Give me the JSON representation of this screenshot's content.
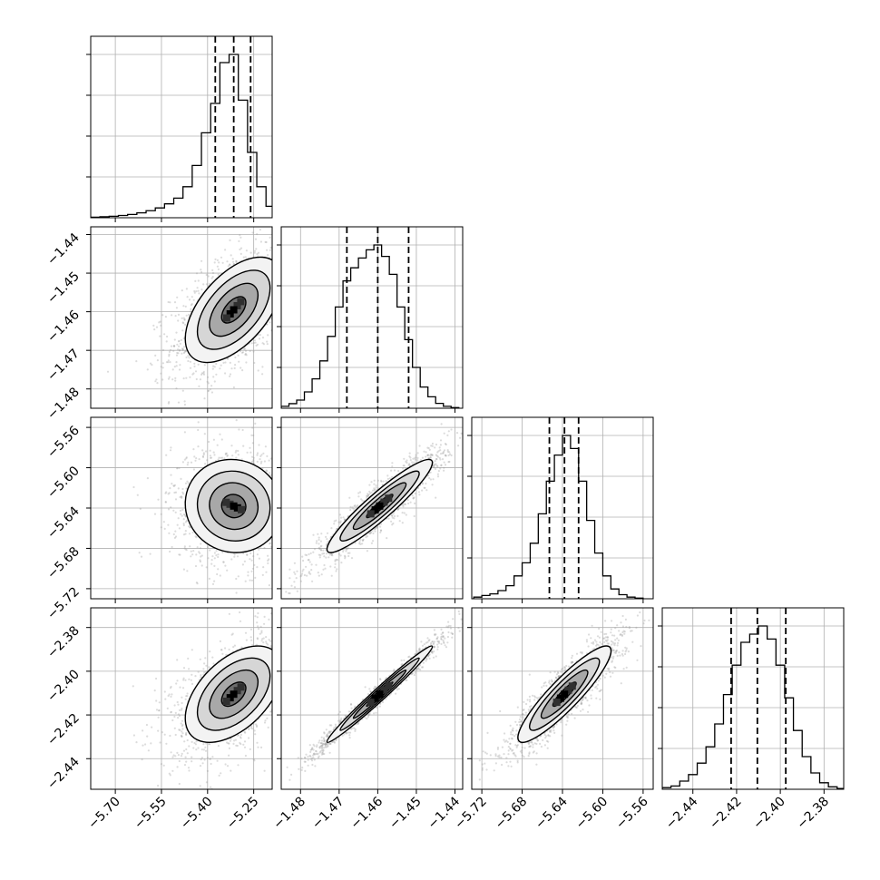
{
  "chart_data": {
    "type": "corner",
    "parameters": 4,
    "grid": true,
    "colors": {
      "line": "#000000",
      "grid": "#b0b0b0",
      "scatter": "#9a9a9a",
      "density_fill": "#bdbdbd",
      "density_peak": "#000000"
    },
    "axes": [
      {
        "range": [
          -5.78,
          -5.19
        ],
        "ticks": [
          -5.7,
          -5.55,
          -5.4,
          -5.25
        ],
        "tick_labels": [
          "−5.70",
          "−5.55",
          "−5.40",
          "−5.25"
        ]
      },
      {
        "range": [
          -1.485,
          -1.438
        ],
        "ticks": [
          -1.48,
          -1.47,
          -1.46,
          -1.45,
          -1.44
        ],
        "tick_labels": [
          "−1.48",
          "−1.47",
          "−1.46",
          "−1.45",
          "−1.44"
        ]
      },
      {
        "range": [
          -5.73,
          -5.55
        ],
        "ticks": [
          -5.72,
          -5.68,
          -5.64,
          -5.6,
          -5.56
        ],
        "tick_labels": [
          "−5.72",
          "−5.68",
          "−5.64",
          "−5.60",
          "−5.56"
        ]
      },
      {
        "range": [
          -2.454,
          -2.371
        ],
        "ticks": [
          -2.44,
          -2.42,
          -2.4,
          -2.38
        ],
        "tick_labels": [
          "−2.44",
          "−2.42",
          "−2.40",
          "−2.38"
        ]
      }
    ],
    "diagonal": [
      {
        "param": 0,
        "bins": [
          -5.78,
          -5.75,
          -5.72,
          -5.69,
          -5.66,
          -5.63,
          -5.6,
          -5.57,
          -5.54,
          -5.51,
          -5.48,
          -5.45,
          -5.42,
          -5.39,
          -5.36,
          -5.33,
          -5.3,
          -5.27,
          -5.24,
          -5.21,
          -5.18
        ],
        "counts": [
          0.003,
          0.006,
          0.009,
          0.014,
          0.02,
          0.03,
          0.043,
          0.06,
          0.085,
          0.12,
          0.19,
          0.32,
          0.52,
          0.7,
          0.95,
          1.0,
          0.72,
          0.4,
          0.19,
          0.07
        ],
        "quantiles": [
          -5.375,
          -5.315,
          -5.26
        ]
      },
      {
        "param": 1,
        "bins": [
          -1.485,
          -1.483,
          -1.481,
          -1.479,
          -1.477,
          -1.475,
          -1.473,
          -1.471,
          -1.469,
          -1.467,
          -1.465,
          -1.463,
          -1.461,
          -1.459,
          -1.457,
          -1.455,
          -1.453,
          -1.451,
          -1.449,
          -1.447,
          -1.445,
          -1.443,
          -1.441,
          -1.439
        ],
        "counts": [
          0.012,
          0.028,
          0.05,
          0.1,
          0.18,
          0.29,
          0.44,
          0.62,
          0.78,
          0.86,
          0.92,
          0.97,
          1.0,
          0.93,
          0.82,
          0.62,
          0.42,
          0.25,
          0.13,
          0.07,
          0.03,
          0.012,
          0.004
        ],
        "quantiles": [
          -1.468,
          -1.46,
          -1.452
        ]
      },
      {
        "param": 2,
        "bins": [
          -5.728,
          -5.72,
          -5.712,
          -5.704,
          -5.696,
          -5.688,
          -5.68,
          -5.672,
          -5.664,
          -5.656,
          -5.648,
          -5.64,
          -5.632,
          -5.624,
          -5.616,
          -5.608,
          -5.6,
          -5.592,
          -5.584,
          -5.576,
          -5.568,
          -5.56
        ],
        "counts": [
          0.01,
          0.02,
          0.03,
          0.05,
          0.08,
          0.14,
          0.22,
          0.34,
          0.52,
          0.72,
          0.88,
          1.0,
          0.92,
          0.72,
          0.48,
          0.28,
          0.14,
          0.06,
          0.025,
          0.01,
          0.004
        ],
        "quantiles": [
          -5.653,
          -5.638,
          -5.624
        ]
      },
      {
        "param": 3,
        "bins": [
          -2.454,
          -2.45,
          -2.446,
          -2.442,
          -2.438,
          -2.434,
          -2.43,
          -2.426,
          -2.422,
          -2.418,
          -2.414,
          -2.41,
          -2.406,
          -2.402,
          -2.398,
          -2.394,
          -2.39,
          -2.386,
          -2.382,
          -2.378,
          -2.374,
          -2.37
        ],
        "counts": [
          0.01,
          0.02,
          0.05,
          0.09,
          0.16,
          0.26,
          0.4,
          0.58,
          0.76,
          0.9,
          0.95,
          1.0,
          0.92,
          0.76,
          0.56,
          0.36,
          0.2,
          0.1,
          0.04,
          0.015,
          0.005
        ],
        "quantiles": [
          -2.4225,
          -2.4105,
          -2.3975
        ]
      }
    ],
    "joint": [
      {
        "x_param": 0,
        "y_param": 1,
        "center": [
          -5.315,
          -1.4595
        ],
        "sd": [
          0.075,
          0.0065
        ],
        "corr": 0.55
      },
      {
        "x_param": 0,
        "y_param": 2,
        "center": [
          -5.315,
          -5.638
        ],
        "sd": [
          0.075,
          0.022
        ],
        "corr": -0.05
      },
      {
        "x_param": 1,
        "y_param": 2,
        "center": [
          -1.4595,
          -5.638
        ],
        "sd": [
          0.0065,
          0.022
        ],
        "corr": 0.93
      },
      {
        "x_param": 0,
        "y_param": 3,
        "center": [
          -5.315,
          -2.4105
        ],
        "sd": [
          0.075,
          0.0105
        ],
        "corr": 0.5
      },
      {
        "x_param": 1,
        "y_param": 3,
        "center": [
          -1.4595,
          -2.4105
        ],
        "sd": [
          0.0065,
          0.0105
        ],
        "corr": 0.985
      },
      {
        "x_param": 2,
        "y_param": 3,
        "center": [
          -5.638,
          -2.4105
        ],
        "sd": [
          0.022,
          0.0105
        ],
        "corr": 0.9
      }
    ],
    "contour_levels_sigma": [
      0.5,
      1.0,
      1.5,
      2.0
    ],
    "points_per_panel": 1400
  }
}
